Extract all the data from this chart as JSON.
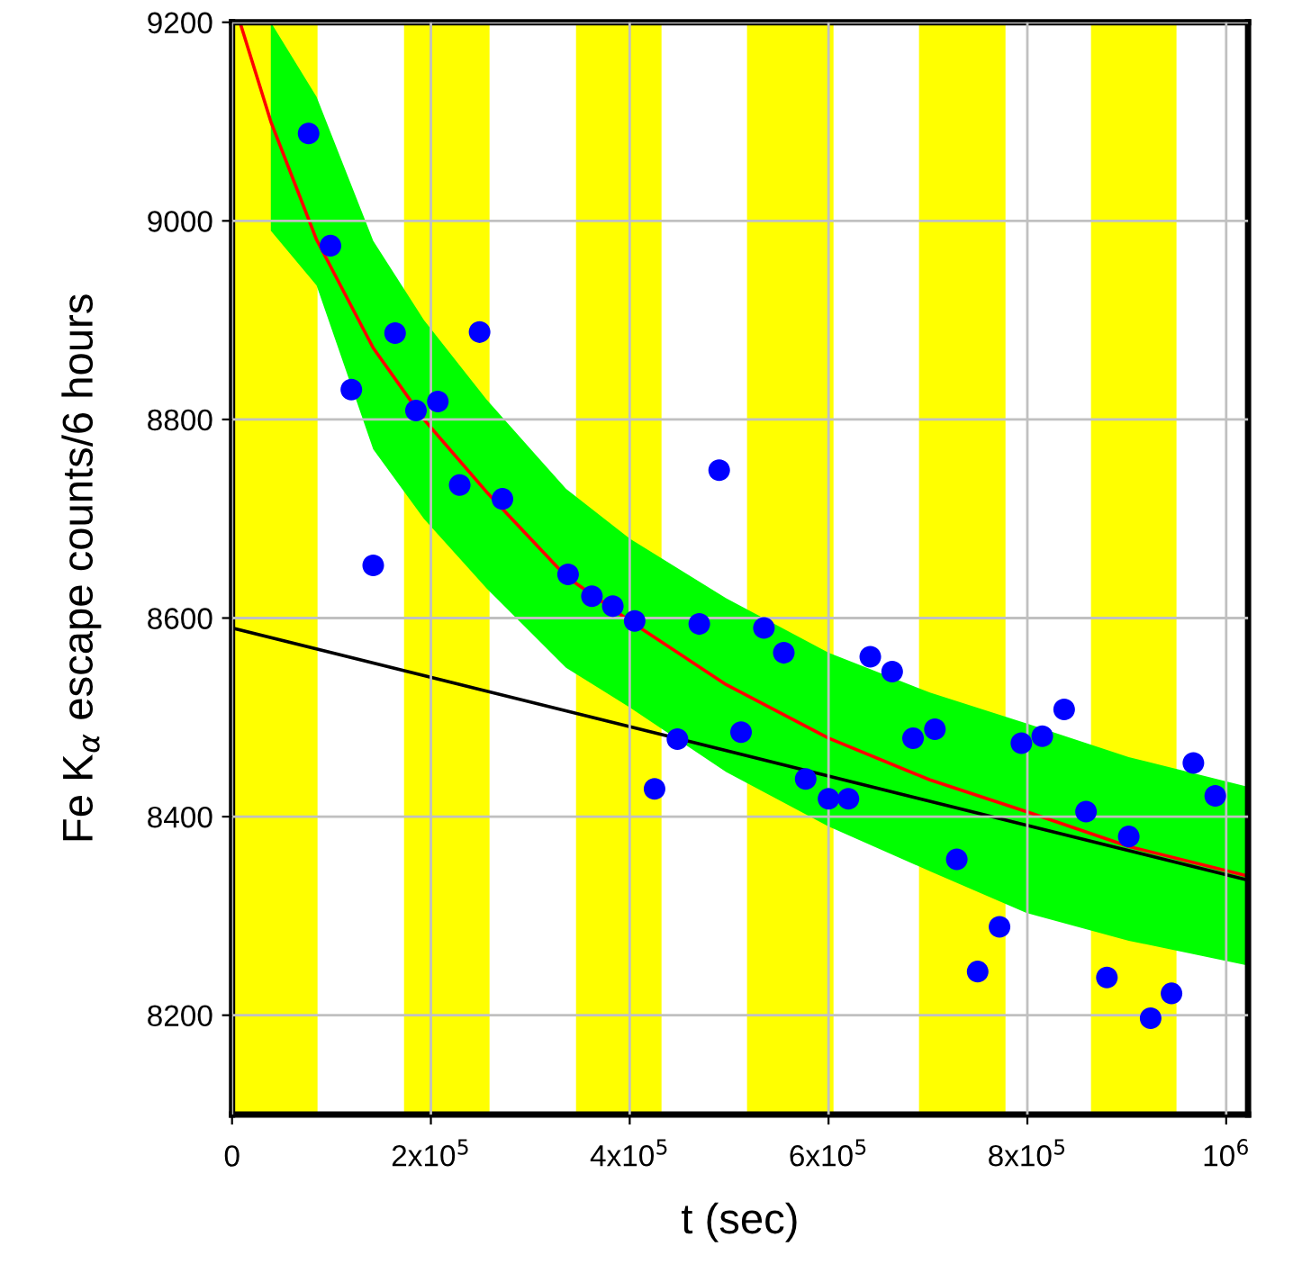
{
  "chart_data": {
    "type": "scatter",
    "xlabel": "t (sec)",
    "ylabel": "Fe K$_{α}$ escape counts/6 hours",
    "xlim": [
      0,
      1022000
    ],
    "ylim": [
      8100,
      9200
    ],
    "xticks": [
      0,
      {
        "value": 200000,
        "label": "2x10$^{5}$"
      },
      {
        "value": 400000,
        "label": "4x10$^{5}$"
      },
      {
        "value": 600000,
        "label": "6x10$^{5}$"
      },
      {
        "value": 800000,
        "label": "8x10$^{5}$"
      },
      {
        "value": 1000000,
        "label": "10$^{6}$"
      }
    ],
    "yticks": [
      8200,
      8400,
      8600,
      8800,
      9000,
      9200
    ],
    "grid": true,
    "legend": false,
    "bands": [
      {
        "axis": "x",
        "from": 0,
        "to": 86000,
        "color": "#ffff00"
      },
      {
        "axis": "x",
        "from": 173000,
        "to": 259000,
        "color": "#ffff00"
      },
      {
        "axis": "x",
        "from": 346000,
        "to": 432000,
        "color": "#ffff00"
      },
      {
        "axis": "x",
        "from": 518000,
        "to": 605000,
        "color": "#ffff00"
      },
      {
        "axis": "x",
        "from": 691000,
        "to": 778000,
        "color": "#ffff00"
      },
      {
        "axis": "x",
        "from": 864000,
        "to": 950000,
        "color": "#ffff00"
      }
    ],
    "series": [
      {
        "type": "line",
        "color": "#ff0000",
        "x": [
          8000,
          39000,
          85000,
          142000,
          193000,
          256000,
          336000,
          400000,
          497000,
          600000,
          702000,
          799000,
          902000,
          1022000
        ],
        "values": [
          9200,
          9100,
          8981,
          8872,
          8800,
          8727,
          8642,
          8597,
          8533,
          8479,
          8437,
          8405,
          8370,
          8340
        ],
        "lower": [
          null,
          8990,
          8935,
          8770,
          8700,
          8630,
          8550,
          8510,
          8445,
          8390,
          8345,
          8303,
          8275,
          8250
        ],
        "upper": [
          null,
          9200,
          9125,
          8980,
          8900,
          8820,
          8730,
          8680,
          8620,
          8565,
          8525,
          8494,
          8460,
          8430
        ]
      },
      {
        "type": "line",
        "color": "#000000",
        "x": [
          0,
          1022000
        ],
        "values": [
          8590,
          8336
        ]
      },
      {
        "marker": "circle",
        "color": "#0000ff",
        "x": [
          77000,
          99000,
          120000,
          142000,
          164000,
          185000,
          207000,
          229000,
          249000,
          272000,
          338000,
          362000,
          383000,
          405000,
          425000,
          448000,
          470000,
          490000,
          512000,
          535000,
          555000,
          577000,
          600000,
          620000,
          642000,
          664000,
          685000,
          707000,
          729000,
          750000,
          772000,
          794000,
          815000,
          837000,
          859000,
          880000,
          902000,
          924000,
          945000,
          967000,
          989000
        ],
        "values": [
          9088,
          8975,
          8830,
          8653,
          8887,
          8809,
          8818,
          8734,
          8888,
          8720,
          8644,
          8622,
          8612,
          8597,
          8428,
          8478,
          8594,
          8749,
          8485,
          8590,
          8565,
          8438,
          8418,
          8418,
          8561,
          8546,
          8479,
          8488,
          8357,
          8244,
          8289,
          8474,
          8481,
          8508,
          8405,
          8238,
          8380,
          8197,
          8222,
          8454,
          8421
        ]
      }
    ]
  }
}
